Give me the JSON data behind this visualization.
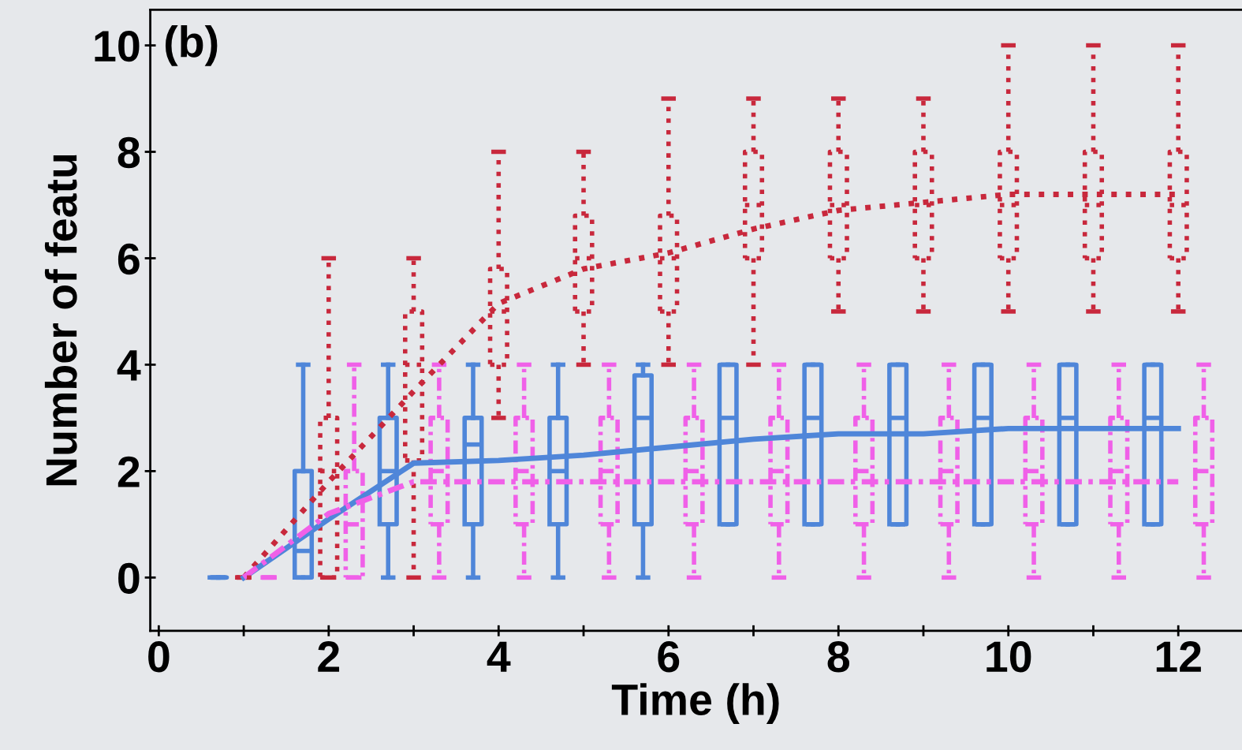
{
  "chart_data": {
    "type": "box",
    "title": "(b)",
    "xlabel": "Time (h)",
    "ylabel": "Number of featu",
    "xlim": [
      -0.1,
      12.75
    ],
    "ylim": [
      -1,
      10.67
    ],
    "xticks": [
      0,
      {
        "value": 1,
        "label": null
      },
      2,
      {
        "value": 3,
        "label": null
      },
      4,
      {
        "value": 5,
        "label": null
      },
      6,
      {
        "value": 7,
        "label": null
      },
      8,
      {
        "value": 9,
        "label": null
      },
      10,
      {
        "value": 11,
        "label": null
      },
      12
    ],
    "yticks": [
      0,
      2,
      4,
      6,
      8,
      10
    ],
    "grid": false,
    "series": [
      {
        "type": "box",
        "color": "#4f86d9",
        "line_style": "solid",
        "x": [
          0.7,
          1.7,
          2.7,
          3.7,
          4.7,
          5.7,
          6.7,
          7.7,
          8.7,
          9.7,
          10.7,
          11.7
        ],
        "boxes": [
          {
            "low": 0,
            "q1": 0,
            "median": 0,
            "q3": 0,
            "high": 0
          },
          {
            "low": 0,
            "q1": 0,
            "median": 0.5,
            "q3": 2,
            "high": 4
          },
          {
            "low": 0,
            "q1": 1,
            "median": 2,
            "q3": 3,
            "high": 4
          },
          {
            "low": 0,
            "q1": 1,
            "median": 2.5,
            "q3": 3,
            "high": 4
          },
          {
            "low": 0,
            "q1": 1,
            "median": 2,
            "q3": 3,
            "high": 4
          },
          {
            "low": 0,
            "q1": 1,
            "median": 3,
            "q3": 3.8,
            "high": 4
          },
          {
            "low": 1,
            "q1": 1,
            "median": 3,
            "q3": 4,
            "high": 4
          },
          {
            "low": 1,
            "q1": 1,
            "median": 3,
            "q3": 4,
            "high": 4
          },
          {
            "low": 1,
            "q1": 1,
            "median": 3,
            "q3": 4,
            "high": 4
          },
          {
            "low": 1,
            "q1": 1,
            "median": 3,
            "q3": 4,
            "high": 4
          },
          {
            "low": 1,
            "q1": 1,
            "median": 3,
            "q3": 4,
            "high": 4
          },
          {
            "low": 1,
            "q1": 1,
            "median": 3,
            "q3": 4,
            "high": 4
          }
        ]
      },
      {
        "type": "box",
        "color": "#c8283c",
        "line_style": "dotted",
        "x": [
          1,
          2,
          3,
          4,
          5,
          6,
          7,
          8,
          9,
          10,
          11,
          12
        ],
        "boxes": [
          {
            "low": 0,
            "q1": 0,
            "median": 0,
            "q3": 0,
            "high": 0
          },
          {
            "low": 0,
            "q1": 0,
            "median": 2,
            "q3": 3,
            "high": 6
          },
          {
            "low": 0,
            "q1": 2.2,
            "median": 4,
            "q3": 5,
            "high": 6
          },
          {
            "low": 3,
            "q1": 4,
            "median": 5,
            "q3": 5.8,
            "high": 8
          },
          {
            "low": 4,
            "q1": 5,
            "median": 6,
            "q3": 6.8,
            "high": 8
          },
          {
            "low": 4,
            "q1": 5,
            "median": 6,
            "q3": 6.8,
            "high": 9
          },
          {
            "low": 4,
            "q1": 6,
            "median": 7,
            "q3": 8,
            "high": 9
          },
          {
            "low": 5,
            "q1": 6,
            "median": 7,
            "q3": 8,
            "high": 9
          },
          {
            "low": 5,
            "q1": 6,
            "median": 7,
            "q3": 8,
            "high": 9
          },
          {
            "low": 5,
            "q1": 6,
            "median": 7,
            "q3": 8,
            "high": 10
          },
          {
            "low": 5,
            "q1": 6,
            "median": 7,
            "q3": 8,
            "high": 10
          },
          {
            "low": 5,
            "q1": 6,
            "median": 7,
            "q3": 8,
            "high": 10
          }
        ]
      },
      {
        "type": "box",
        "color": "#f060e8",
        "line_style": "dashdot",
        "x": [
          1.3,
          2.3,
          3.3,
          4.3,
          5.3,
          6.3,
          7.3,
          8.3,
          9.3,
          10.3,
          11.3,
          12.3
        ],
        "boxes": [
          {
            "low": 0,
            "q1": 0,
            "median": 0,
            "q3": 0,
            "high": 0
          },
          {
            "low": 0,
            "q1": 0,
            "median": 1,
            "q3": 2,
            "high": 4
          },
          {
            "low": 0,
            "q1": 1,
            "median": 2,
            "q3": 3,
            "high": 4
          },
          {
            "low": 0,
            "q1": 1,
            "median": 2,
            "q3": 3,
            "high": 4
          },
          {
            "low": 0,
            "q1": 1,
            "median": 2,
            "q3": 3,
            "high": 4
          },
          {
            "low": 0,
            "q1": 1,
            "median": 2,
            "q3": 3,
            "high": 4
          },
          {
            "low": 0,
            "q1": 1,
            "median": 2,
            "q3": 3,
            "high": 4
          },
          {
            "low": 0,
            "q1": 1,
            "median": 2,
            "q3": 3,
            "high": 4
          },
          {
            "low": 0,
            "q1": 1,
            "median": 2,
            "q3": 3,
            "high": 4
          },
          {
            "low": 0,
            "q1": 1,
            "median": 2,
            "q3": 3,
            "high": 4
          },
          {
            "low": 0,
            "q1": 1,
            "median": 2,
            "q3": 3,
            "high": 4
          },
          {
            "low": 0,
            "q1": 1,
            "median": 2,
            "q3": 3,
            "high": 4
          }
        ]
      },
      {
        "type": "line",
        "color": "#c8283c",
        "line_style": "dotted",
        "x": [
          1,
          2,
          3,
          4,
          5,
          6,
          7,
          8,
          9,
          10,
          11,
          12
        ],
        "values": [
          0,
          1.8,
          3.5,
          5.15,
          5.8,
          6.1,
          6.55,
          6.9,
          7.05,
          7.2,
          7.2,
          7.2
        ]
      },
      {
        "type": "line",
        "color": "#4f86d9",
        "line_style": "solid",
        "x": [
          1,
          2,
          3,
          4,
          5,
          6,
          7,
          8,
          9,
          10,
          11,
          12
        ],
        "values": [
          0,
          1.1,
          2.15,
          2.2,
          2.3,
          2.45,
          2.6,
          2.7,
          2.7,
          2.8,
          2.8,
          2.8
        ]
      },
      {
        "type": "line",
        "color": "#f060e8",
        "line_style": "dashdot",
        "x": [
          1,
          2,
          3,
          4,
          5,
          6,
          7,
          8,
          9,
          10,
          11,
          12
        ],
        "values": [
          0,
          1.2,
          1.8,
          1.8,
          1.8,
          1.8,
          1.8,
          1.8,
          1.8,
          1.8,
          1.8,
          1.8
        ]
      }
    ]
  }
}
